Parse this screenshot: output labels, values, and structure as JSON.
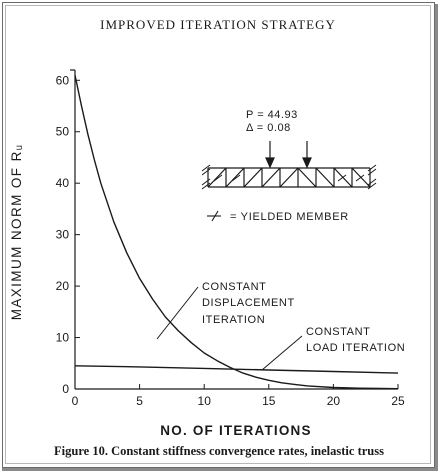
{
  "figure": {
    "title": "IMPROVED ITERATION STRATEGY",
    "caption": "Figure 10. Constant stiffness convergence rates, inelastic truss"
  },
  "chart_data": {
    "type": "line",
    "xlabel": "NO. OF ITERATIONS",
    "ylabel": "MAXIMUM NORM OF Rᵤ",
    "xlim": [
      0,
      25
    ],
    "ylim": [
      0,
      62
    ],
    "x_ticks": [
      0,
      5,
      10,
      15,
      20,
      25
    ],
    "y_ticks": [
      0,
      10,
      20,
      30,
      40,
      50,
      60
    ],
    "grid": false,
    "series": [
      {
        "name": "CONSTANT DISPLACEMENT ITERATION",
        "x": [
          0,
          0.5,
          1,
          1.5,
          2,
          3,
          4,
          5,
          6,
          7,
          8,
          9,
          10,
          11,
          12,
          13,
          14,
          15,
          16,
          17,
          18,
          20,
          22,
          25
        ],
        "y": [
          61,
          55,
          49.5,
          44.5,
          40,
          32.5,
          26.5,
          21.5,
          17.5,
          14,
          11.3,
          9,
          7,
          5.5,
          4.2,
          3.1,
          2.3,
          1.7,
          1.2,
          0.9,
          0.6,
          0.3,
          0.15,
          0.05
        ]
      },
      {
        "name": "CONSTANT LOAD ITERATION",
        "x": [
          0,
          5,
          10,
          15,
          20,
          25
        ],
        "y": [
          4.5,
          4.3,
          4.0,
          3.7,
          3.4,
          3.1
        ]
      }
    ],
    "annotations": {
      "load": "P = 44.93",
      "displacement": "Δ = 0.08",
      "legend_symbol_text": "= YIELDED MEMBER"
    }
  }
}
